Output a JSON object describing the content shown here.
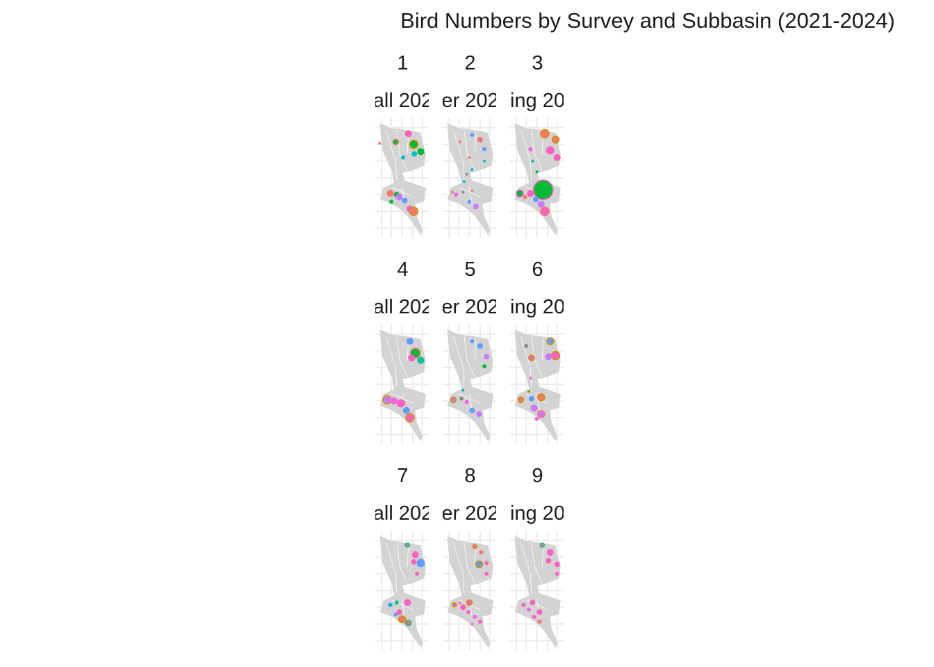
{
  "title": "Bird Numbers by Survey and Subbasin (2021-2024)",
  "colors": {
    "map_fill": "#d3d3d3",
    "map_border": "#ffffff",
    "grid": "#ebebeb",
    "series": [
      "#00BA38",
      "#F8766D",
      "#00BFC4",
      "#F564E3",
      "#619CFF",
      "#C77CFF",
      "#FF61C3",
      "#CD9600",
      "#7CAE00",
      "#00A9FF",
      "#00C19A",
      "#8B8B8B",
      "#E76BF3"
    ]
  },
  "chart_data": {
    "type": "scatter",
    "subtype": "faceted bubble map",
    "facets": [
      {
        "number": "1",
        "season": "all 202",
        "points": [
          [
            0.62,
            0.13,
            5,
            6,
            0
          ],
          [
            0.72,
            0.22,
            6,
            0,
            7
          ],
          [
            0.85,
            0.28,
            5,
            0,
            0
          ],
          [
            0.38,
            0.2,
            4,
            0,
            1
          ],
          [
            0.73,
            0.3,
            4,
            2,
            0
          ],
          [
            0.52,
            0.33,
            3,
            2,
            0
          ],
          [
            0.28,
            0.63,
            5,
            1,
            0
          ],
          [
            0.4,
            0.64,
            4,
            0,
            0
          ],
          [
            0.45,
            0.66,
            5,
            5,
            0
          ],
          [
            0.3,
            0.7,
            3,
            0,
            0
          ],
          [
            0.55,
            0.69,
            4,
            4,
            0
          ],
          [
            0.65,
            0.76,
            5,
            6,
            0
          ],
          [
            0.72,
            0.78,
            6,
            1,
            7
          ],
          [
            0.08,
            0.21,
            2,
            1,
            0
          ]
        ]
      },
      {
        "number": "2",
        "season": "er 202",
        "points": [
          [
            0.55,
            0.14,
            3,
            4,
            0
          ],
          [
            0.7,
            0.18,
            4,
            1,
            0
          ],
          [
            0.78,
            0.26,
            3,
            4,
            0
          ],
          [
            0.78,
            0.36,
            2,
            2,
            0
          ],
          [
            0.5,
            0.33,
            2,
            1,
            0
          ],
          [
            0.32,
            0.2,
            2,
            1,
            0
          ],
          [
            0.45,
            0.47,
            2,
            11,
            0
          ],
          [
            0.4,
            0.53,
            2,
            2,
            0
          ],
          [
            0.55,
            0.43,
            2,
            2,
            0
          ],
          [
            0.18,
            0.62,
            2,
            1,
            0
          ],
          [
            0.25,
            0.64,
            3,
            3,
            0
          ],
          [
            0.38,
            0.62,
            2,
            11,
            0
          ],
          [
            0.55,
            0.61,
            2,
            1,
            0
          ],
          [
            0.5,
            0.7,
            3,
            4,
            0
          ],
          [
            0.62,
            0.74,
            4,
            5,
            0
          ]
        ]
      },
      {
        "number": "3",
        "season": "ing 20",
        "points": [
          [
            0.65,
            0.13,
            6,
            1,
            7
          ],
          [
            0.85,
            0.18,
            5,
            1,
            7
          ],
          [
            0.75,
            0.27,
            6,
            6,
            0
          ],
          [
            0.88,
            0.33,
            5,
            6,
            0
          ],
          [
            0.38,
            0.26,
            3,
            3,
            0
          ],
          [
            0.42,
            0.36,
            2,
            2,
            0
          ],
          [
            0.5,
            0.45,
            2,
            0,
            0
          ],
          [
            0.18,
            0.63,
            5,
            0,
            6
          ],
          [
            0.38,
            0.63,
            5,
            6,
            0
          ],
          [
            0.62,
            0.6,
            14,
            0,
            6
          ],
          [
            0.48,
            0.68,
            4,
            4,
            0
          ],
          [
            0.58,
            0.72,
            5,
            5,
            0
          ],
          [
            0.65,
            0.78,
            6,
            6,
            1
          ],
          [
            0.28,
            0.66,
            3,
            1,
            0
          ]
        ]
      },
      {
        "number": "4",
        "season": "all 202",
        "points": [
          [
            0.65,
            0.14,
            5,
            4,
            0
          ],
          [
            0.75,
            0.24,
            7,
            0,
            1
          ],
          [
            0.85,
            0.3,
            5,
            10,
            0
          ],
          [
            0.68,
            0.28,
            5,
            6,
            0
          ],
          [
            0.22,
            0.63,
            6,
            5,
            7
          ],
          [
            0.35,
            0.64,
            5,
            3,
            0
          ],
          [
            0.48,
            0.66,
            6,
            6,
            0
          ],
          [
            0.58,
            0.72,
            5,
            4,
            0
          ],
          [
            0.65,
            0.78,
            6,
            6,
            7
          ]
        ]
      },
      {
        "number": "5",
        "season": "er 202",
        "points": [
          [
            0.55,
            0.14,
            3,
            4,
            0
          ],
          [
            0.7,
            0.18,
            4,
            4,
            0
          ],
          [
            0.82,
            0.27,
            4,
            5,
            0
          ],
          [
            0.78,
            0.35,
            3,
            0,
            0
          ],
          [
            0.38,
            0.55,
            2,
            2,
            0
          ],
          [
            0.2,
            0.63,
            4,
            5,
            7
          ],
          [
            0.35,
            0.62,
            3,
            11,
            0
          ],
          [
            0.45,
            0.65,
            3,
            3,
            0
          ],
          [
            0.55,
            0.72,
            4,
            4,
            0
          ],
          [
            0.68,
            0.75,
            4,
            5,
            0
          ]
        ]
      },
      {
        "number": "6",
        "season": "ing 20",
        "points": [
          [
            0.75,
            0.14,
            5,
            4,
            7
          ],
          [
            0.85,
            0.26,
            6,
            6,
            7
          ],
          [
            0.72,
            0.27,
            5,
            5,
            0
          ],
          [
            0.4,
            0.28,
            4,
            6,
            7
          ],
          [
            0.3,
            0.18,
            3,
            11,
            0
          ],
          [
            0.38,
            0.45,
            2,
            3,
            0
          ],
          [
            0.35,
            0.56,
            2,
            8,
            0
          ],
          [
            0.2,
            0.63,
            4,
            1,
            7
          ],
          [
            0.4,
            0.62,
            4,
            4,
            0
          ],
          [
            0.58,
            0.61,
            5,
            1,
            7
          ],
          [
            0.45,
            0.7,
            5,
            5,
            0
          ],
          [
            0.58,
            0.75,
            5,
            5,
            1
          ],
          [
            0.5,
            0.79,
            3,
            3,
            0
          ]
        ]
      },
      {
        "number": "7",
        "season": "all 202",
        "points": [
          [
            0.6,
            0.12,
            3,
            1,
            10
          ],
          [
            0.75,
            0.2,
            5,
            6,
            0
          ],
          [
            0.72,
            0.26,
            4,
            6,
            0
          ],
          [
            0.85,
            0.27,
            6,
            4,
            0
          ],
          [
            0.78,
            0.36,
            3,
            6,
            0
          ],
          [
            0.28,
            0.62,
            3,
            9,
            0
          ],
          [
            0.4,
            0.6,
            3,
            10,
            0
          ],
          [
            0.6,
            0.6,
            5,
            6,
            0
          ],
          [
            0.45,
            0.68,
            4,
            6,
            0
          ],
          [
            0.5,
            0.74,
            5,
            1,
            7
          ],
          [
            0.62,
            0.77,
            4,
            1,
            10
          ],
          [
            0.38,
            0.7,
            3,
            4,
            0
          ]
        ]
      },
      {
        "number": "8",
        "season": "er 202",
        "points": [
          [
            0.6,
            0.13,
            3,
            6,
            7
          ],
          [
            0.72,
            0.18,
            3,
            1,
            0
          ],
          [
            0.68,
            0.28,
            5,
            4,
            7
          ],
          [
            0.82,
            0.27,
            3,
            6,
            0
          ],
          [
            0.82,
            0.36,
            3,
            6,
            0
          ],
          [
            0.22,
            0.62,
            3,
            6,
            7
          ],
          [
            0.38,
            0.64,
            4,
            6,
            0
          ],
          [
            0.5,
            0.6,
            4,
            6,
            7
          ],
          [
            0.48,
            0.68,
            3,
            6,
            0
          ],
          [
            0.6,
            0.72,
            3,
            12,
            0
          ],
          [
            0.7,
            0.76,
            3,
            6,
            0
          ],
          [
            0.32,
            0.6,
            2,
            3,
            0
          ],
          [
            0.55,
            0.78,
            2,
            3,
            0
          ]
        ]
      },
      {
        "number": "9",
        "season": "ing 20",
        "points": [
          [
            0.6,
            0.12,
            3,
            1,
            10
          ],
          [
            0.75,
            0.18,
            5,
            6,
            0
          ],
          [
            0.72,
            0.25,
            4,
            6,
            0
          ],
          [
            0.88,
            0.28,
            4,
            6,
            0
          ],
          [
            0.88,
            0.36,
            3,
            6,
            0
          ],
          [
            0.25,
            0.62,
            3,
            6,
            0
          ],
          [
            0.42,
            0.6,
            4,
            6,
            0
          ],
          [
            0.55,
            0.68,
            4,
            6,
            0
          ],
          [
            0.45,
            0.72,
            3,
            6,
            0
          ],
          [
            0.55,
            0.76,
            3,
            1,
            0
          ],
          [
            0.35,
            0.66,
            3,
            3,
            0
          ]
        ]
      }
    ]
  }
}
